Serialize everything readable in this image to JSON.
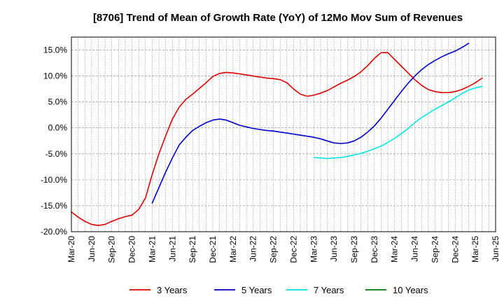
{
  "chart_data": {
    "type": "line",
    "title": "[8706]  Trend of Mean of Growth Rate (YoY) of 12Mo Mov Sum of Revenues",
    "xlabel": "",
    "ylabel": "",
    "ylim": [
      -20,
      17.5
    ],
    "y_ticks": [
      15,
      10,
      5,
      0,
      -5,
      -10,
      -15,
      -20
    ],
    "y_tick_labels": [
      "15.0%",
      "10.0%",
      "5.0%",
      "0.0%",
      "-5.0%",
      "-10.0%",
      "-15.0%",
      "-20.0%"
    ],
    "x_tick_labels": [
      "Mar-20",
      "Jun-20",
      "Sep-20",
      "Dec-20",
      "Mar-21",
      "Jun-21",
      "Sep-21",
      "Dec-21",
      "Mar-22",
      "Jun-22",
      "Sep-22",
      "Dec-22",
      "Mar-23",
      "Jun-23",
      "Sep-23",
      "Dec-23",
      "Mar-24",
      "Jun-24",
      "Sep-24",
      "Dec-24",
      "Mar-25",
      "Jun-25"
    ],
    "x_range_months": [
      0,
      63
    ],
    "grid": true,
    "legend_position": "bottom",
    "series": [
      {
        "name": "3 Years",
        "color": "#dd0000",
        "start_month": 0,
        "values": [
          -16.2,
          -17.2,
          -18.0,
          -18.6,
          -18.8,
          -18.6,
          -18.0,
          -17.5,
          -17.1,
          -16.8,
          -15.7,
          -13.5,
          -9.0,
          -5.0,
          -1.5,
          1.7,
          4.0,
          5.5,
          6.5,
          7.6,
          8.7,
          9.9,
          10.5,
          10.7,
          10.6,
          10.4,
          10.2,
          10.0,
          9.8,
          9.6,
          9.5,
          9.3,
          8.7,
          7.5,
          6.5,
          6.1,
          6.3,
          6.7,
          7.2,
          7.9,
          8.6,
          9.2,
          9.9,
          10.8,
          12.0,
          13.4,
          14.5,
          14.5,
          13.2,
          11.9,
          10.6,
          9.3,
          8.2,
          7.4,
          7.0,
          6.8,
          6.8,
          7.0,
          7.4,
          8.0,
          8.7,
          9.6
        ]
      },
      {
        "name": "5 Years",
        "color": "#0000cc",
        "start_month": 12,
        "values": [
          -14.5,
          -11.5,
          -8.5,
          -5.8,
          -3.3,
          -1.8,
          -0.5,
          0.3,
          1.0,
          1.5,
          1.7,
          1.5,
          1.0,
          0.5,
          0.2,
          -0.1,
          -0.3,
          -0.5,
          -0.6,
          -0.8,
          -1.0,
          -1.2,
          -1.4,
          -1.6,
          -1.8,
          -2.1,
          -2.5,
          -2.9,
          -3.0,
          -2.9,
          -2.5,
          -1.8,
          -0.8,
          0.4,
          1.9,
          3.6,
          5.3,
          7.0,
          8.6,
          10.0,
          11.2,
          12.2,
          13.0,
          13.7,
          14.3,
          14.8,
          15.5,
          16.3
        ]
      },
      {
        "name": "7 Years",
        "color": "#00e5e5",
        "start_month": 36,
        "values": [
          -5.7,
          -5.8,
          -5.9,
          -5.8,
          -5.7,
          -5.5,
          -5.2,
          -4.9,
          -4.5,
          -4.0,
          -3.5,
          -2.8,
          -2.0,
          -1.1,
          -0.1,
          1.0,
          2.0,
          2.8,
          3.6,
          4.3,
          5.0,
          5.8,
          6.6,
          7.3,
          7.7,
          8.0
        ]
      },
      {
        "name": "10 Years",
        "color": "#007700",
        "start_month": 0,
        "values": []
      }
    ]
  }
}
